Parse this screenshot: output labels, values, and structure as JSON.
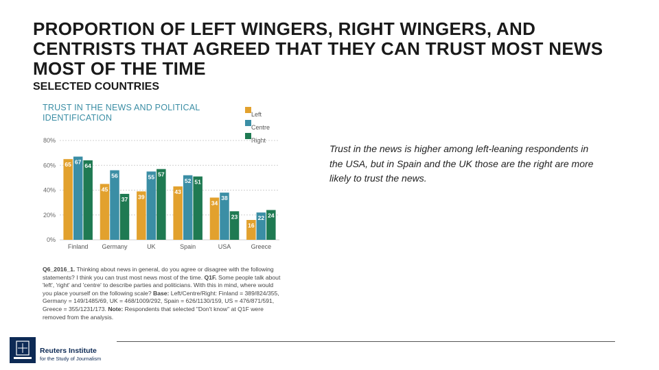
{
  "slide": {
    "title": "PROPORTION OF LEFT WINGERS, RIGHT WINGERS, AND CENTRISTS THAT AGREED THAT THEY CAN TRUST MOST NEWS MOST OF THE TIME",
    "subtitle": "SELECTED COUNTRIES",
    "comment": "Trust in the news is higher among left-leaning respondents in the USA, but in Spain and the UK those are the right are more likely to trust the news."
  },
  "chart_data": {
    "type": "bar",
    "title": "TRUST IN THE NEWS AND POLITICAL IDENTIFICATION",
    "categories": [
      "Finland",
      "Germany",
      "UK",
      "Spain",
      "USA",
      "Greece"
    ],
    "series": [
      {
        "name": "Left",
        "values": [
          65,
          45,
          39,
          43,
          34,
          16
        ]
      },
      {
        "name": "Centre",
        "values": [
          67,
          56,
          55,
          52,
          38,
          22
        ]
      },
      {
        "name": "Right",
        "values": [
          64,
          37,
          57,
          51,
          23,
          24
        ]
      }
    ],
    "colors": [
      "#e2a12e",
      "#3b8ea5",
      "#1f7a52"
    ],
    "yticks": [
      "0%",
      "20%",
      "40%",
      "60%",
      "80%"
    ],
    "ylim": [
      0,
      80
    ],
    "grid": true,
    "legend_position": "top-right",
    "note": {
      "bold1": "Q6_2016_1.",
      "text1": " Thinking about news in general, do you agree or disagree with the following statements? I think you can trust most news most of the time. ",
      "bold2": "Q1F.",
      "text2": " Some people talk about 'left', 'right' and 'centre' to describe parties and politicians. With this in mind, where would you place yourself on the following scale? ",
      "bold3": "Base:",
      "text3": " Left/Centre/Right: Finland = 389/824/355, Germany = 149/1485/69, UK = 468/1009/292, Spain = 626/1130/159, US = 476/871/591, Greece = 355/1231/173. ",
      "bold4": "Note:",
      "text4": " Respondents that selected \"Don't know\" at Q1F were removed from the analysis."
    }
  },
  "footer": {
    "org": "Reuters Institute",
    "org_sub": "for the Study of Journalism"
  }
}
